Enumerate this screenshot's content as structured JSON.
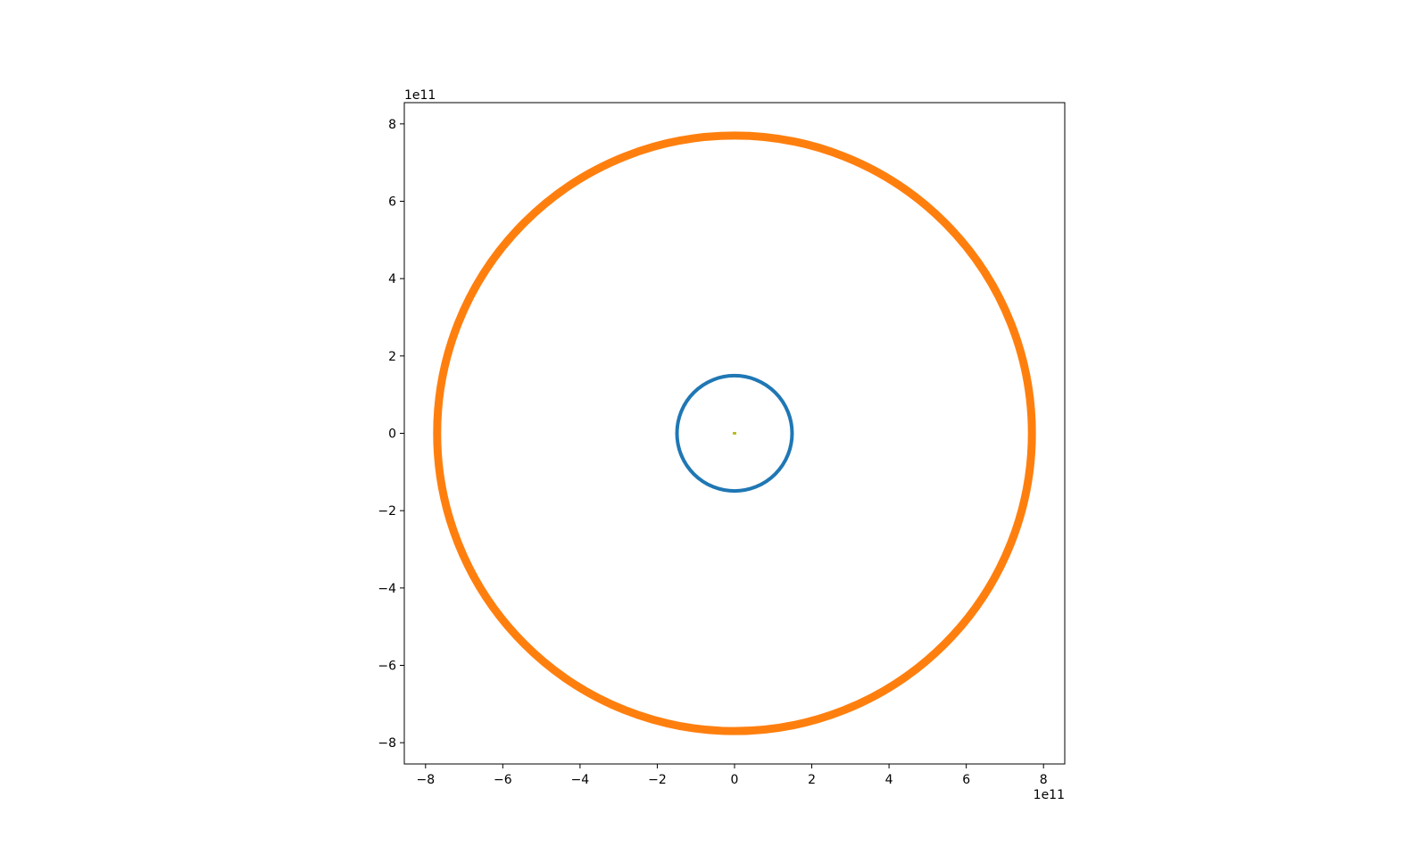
{
  "chart_data": {
    "type": "scatter",
    "title": "",
    "xlabel": "",
    "ylabel": "",
    "xlim": [
      -8.55,
      8.55
    ],
    "ylim": [
      -8.55,
      8.55
    ],
    "x_offset_label": "1e11",
    "y_offset_label": "1e11",
    "x_ticks": [
      {
        "value": -8,
        "label": "−8"
      },
      {
        "value": -6,
        "label": "−6"
      },
      {
        "value": -4,
        "label": "−4"
      },
      {
        "value": -2,
        "label": "−2"
      },
      {
        "value": 0,
        "label": "0"
      },
      {
        "value": 2,
        "label": "2"
      },
      {
        "value": 4,
        "label": "4"
      },
      {
        "value": 6,
        "label": "6"
      },
      {
        "value": 8,
        "label": "8"
      }
    ],
    "y_ticks": [
      {
        "value": -8,
        "label": "−8"
      },
      {
        "value": -6,
        "label": "−6"
      },
      {
        "value": -4,
        "label": "−4"
      },
      {
        "value": -2,
        "label": "−2"
      },
      {
        "value": 0,
        "label": "0"
      },
      {
        "value": 2,
        "label": "2"
      },
      {
        "value": 4,
        "label": "4"
      },
      {
        "value": 6,
        "label": "6"
      },
      {
        "value": 8,
        "label": "8"
      }
    ],
    "grid": false,
    "legend": "none",
    "series": [
      {
        "shape": "point",
        "x": 0,
        "y": 0,
        "color": "#bcbd22"
      },
      {
        "shape": "circular-orbit",
        "center": [
          0,
          0
        ],
        "radius": 1.49,
        "color": "#1f77b4"
      },
      {
        "shape": "circular-orbit",
        "center": [
          0,
          0
        ],
        "radius": 7.7,
        "color": "#ff7f0e"
      }
    ]
  }
}
